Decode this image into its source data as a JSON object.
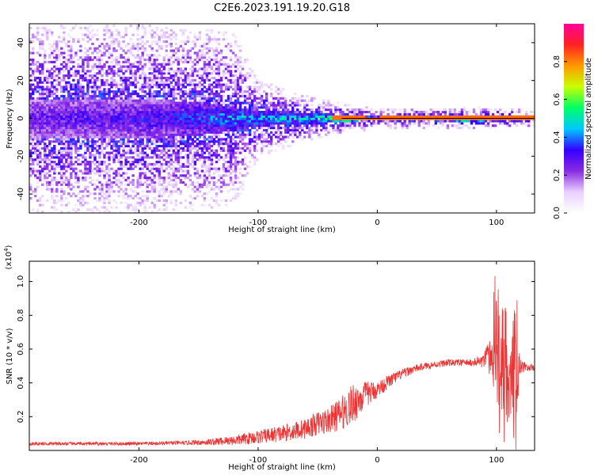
{
  "title": "C2E6.2023.191.19.20.G18",
  "colors": {
    "snr_line": "#ee3333",
    "zero_line": "#000000",
    "colormap": [
      "#ffffff",
      "#e8d0ff",
      "#8a2be2",
      "#3300ff",
      "#00c8ff",
      "#00ff66",
      "#c8ff00",
      "#ff9900",
      "#ff2222",
      "#ff0099"
    ]
  },
  "chart_data": [
    {
      "type": "heatmap",
      "xlabel": "Height of straight line (km)",
      "ylabel": "Frequency (Hz)",
      "xlim": [
        -292,
        132
      ],
      "ylim": [
        -50,
        50
      ],
      "xticks": [
        -200,
        -100,
        0,
        100
      ],
      "xtick_labels": [
        "-200",
        "-100",
        "0",
        "100"
      ],
      "yticks": [
        -40,
        -20,
        0,
        20,
        40
      ],
      "ytick_labels": [
        "-40",
        "-20",
        "0",
        "20",
        "40"
      ],
      "colorbar": {
        "label": "Normalized spectral amplitude",
        "range": [
          0,
          1
        ],
        "ticks": [
          0,
          0.2,
          0.4,
          0.6,
          0.8
        ],
        "tick_labels": [
          "0.0",
          "0.2",
          "0.4",
          "0.6",
          "0.8"
        ]
      },
      "ridge_center_hz": 0,
      "spread_profile": {
        "x": [
          -292,
          -200,
          -150,
          -120,
          -100,
          -60,
          -30,
          -10,
          0,
          80,
          132
        ],
        "core_halfwidth_hz": [
          10,
          10,
          9,
          6,
          4,
          3,
          2,
          1,
          1,
          1.5,
          1
        ],
        "halo_halfwidth_hz": [
          50,
          50,
          48,
          45,
          20,
          12,
          8,
          6,
          5,
          6,
          5
        ],
        "peak_amplitude": [
          0.35,
          0.38,
          0.45,
          0.55,
          0.55,
          0.6,
          0.75,
          0.85,
          0.9,
          0.88,
          0.85
        ]
      }
    },
    {
      "type": "line",
      "xlabel": "Height of straight line (km)",
      "ylabel": "SNR (10 * v/v)",
      "y_multiplier_label": "(x10",
      "y_multiplier_exp": "4",
      "y_multiplier_close": ")",
      "xlim": [
        -292,
        132
      ],
      "ylim": [
        0,
        1.12
      ],
      "xticks": [
        -200,
        -100,
        0,
        100
      ],
      "xtick_labels": [
        "-200",
        "-100",
        "0",
        "100"
      ],
      "yticks": [
        0.2,
        0.4,
        0.6,
        0.8,
        1.0
      ],
      "ytick_labels": [
        "0.2",
        "0.4",
        "0.6",
        "0.8",
        "1.0"
      ],
      "series": [
        {
          "x": [
            -292,
            -250,
            -200,
            -160,
            -140,
            -120,
            -100,
            -80,
            -60,
            -50,
            -40,
            -30,
            -20,
            -10,
            0,
            10,
            20,
            30,
            40,
            50,
            60,
            70,
            80,
            90,
            95,
            100,
            105,
            110,
            115,
            120,
            125,
            132
          ],
          "y": [
            0.04,
            0.04,
            0.04,
            0.045,
            0.05,
            0.06,
            0.08,
            0.1,
            0.13,
            0.16,
            0.18,
            0.22,
            0.28,
            0.33,
            0.36,
            0.41,
            0.45,
            0.48,
            0.5,
            0.51,
            0.52,
            0.52,
            0.52,
            0.53,
            0.55,
            0.6,
            0.55,
            0.5,
            0.45,
            0.5,
            0.49,
            0.49
          ],
          "noise_amplitude": [
            0.01,
            0.01,
            0.01,
            0.012,
            0.02,
            0.03,
            0.04,
            0.05,
            0.06,
            0.07,
            0.08,
            0.1,
            0.12,
            0.08,
            0.05,
            0.04,
            0.03,
            0.025,
            0.02,
            0.02,
            0.02,
            0.02,
            0.02,
            0.05,
            0.15,
            0.3,
            0.35,
            0.35,
            0.4,
            0.05,
            0.02,
            0.02
          ]
        }
      ]
    }
  ]
}
